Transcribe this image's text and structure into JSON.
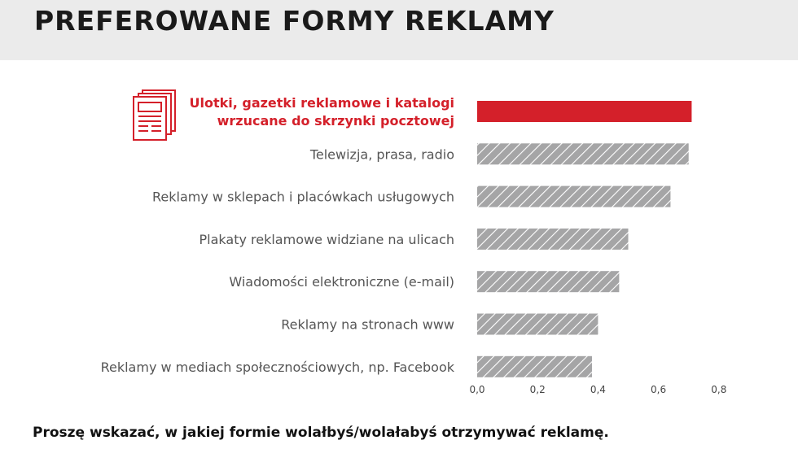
{
  "header": {
    "title": "PREFEROWANE FORMY REKLAMY"
  },
  "footer": {
    "question": "Proszę wskazać, w jakiej formie wolałbyś/wolałabyś otrzymywać reklamę."
  },
  "colors": {
    "highlight": "#d4202a",
    "bar": "#a5a5a6",
    "label": "#555555"
  },
  "icon": "newspaper-stack-icon",
  "chart_data": {
    "type": "bar",
    "orientation": "horizontal",
    "categories": [
      [
        "Ulotki, gazetki reklamowe i katalogi",
        "wrzucane do skrzynki pocztowej"
      ],
      [
        "Telewizja, prasa, radio"
      ],
      [
        "Reklamy w sklepach i placówkach usługowych"
      ],
      [
        "Plakaty reklamowe widziane na ulicach"
      ],
      [
        "Wiadomości elektroniczne (e-mail)"
      ],
      [
        "Reklamy na stronach www"
      ],
      [
        "Reklamy w mediach społecznościowych, np. Facebook"
      ]
    ],
    "values": [
      0.71,
      0.7,
      0.64,
      0.5,
      0.47,
      0.4,
      0.38
    ],
    "highlight_index": 0,
    "xlim": [
      0,
      0.8
    ],
    "xticks": [
      "0,0",
      "0,2",
      "0,4",
      "0,6",
      "0,8"
    ],
    "grid": false
  }
}
